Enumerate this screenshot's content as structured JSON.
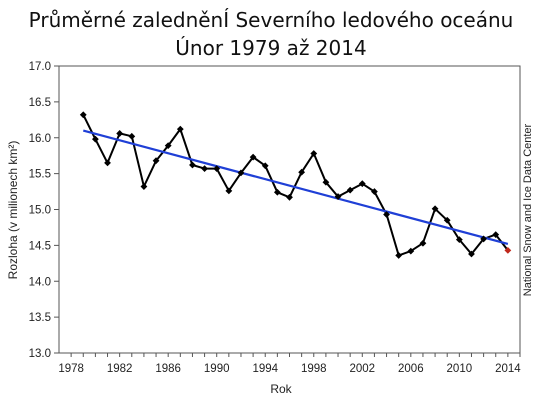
{
  "chart_data": {
    "type": "line",
    "title": "Průměrné zaledněnÍ Severního ledového oceánu",
    "subtitle": "Únor 1979 až 2014",
    "xlabel": "Rok",
    "ylabel": "Rozloha (v milionech km²)",
    "xlim": [
      1977,
      2015
    ],
    "ylim": [
      13.0,
      17.0
    ],
    "xticks": [
      1978,
      1982,
      1986,
      1990,
      1994,
      1998,
      2002,
      2006,
      2010,
      2014
    ],
    "yticks": [
      "13.0",
      "13.5",
      "14.0",
      "14.5",
      "15.0",
      "15.5",
      "16.0",
      "16.5",
      "17.0"
    ],
    "grid": false,
    "series": [
      {
        "x": [
          1979,
          1980,
          1981,
          1982,
          1983,
          1984,
          1985,
          1986,
          1987,
          1988,
          1989,
          1990,
          1991,
          1992,
          1993,
          1994,
          1995,
          1996,
          1997,
          1998,
          1999,
          2000,
          2001,
          2002,
          2003,
          2004,
          2005,
          2006,
          2007,
          2008,
          2009,
          2010,
          2011,
          2012,
          2013,
          2014
        ],
        "values": [
          16.32,
          15.98,
          15.65,
          16.06,
          16.02,
          15.32,
          15.68,
          15.89,
          16.12,
          15.62,
          15.57,
          15.57,
          15.26,
          15.51,
          15.73,
          15.61,
          15.24,
          15.17,
          15.52,
          15.78,
          15.38,
          15.18,
          15.27,
          15.36,
          15.25,
          14.93,
          14.36,
          14.42,
          14.53,
          15.01,
          14.85,
          14.58,
          14.38,
          14.59,
          14.65,
          14.43
        ],
        "color": "#000000"
      },
      {
        "type": "trend",
        "x": [
          1979,
          2014
        ],
        "values": [
          16.1,
          14.52
        ],
        "color": "#1f3fd6"
      }
    ],
    "last_point_color": "#c0281c"
  },
  "credit": "National Snow and Ice Data Center"
}
